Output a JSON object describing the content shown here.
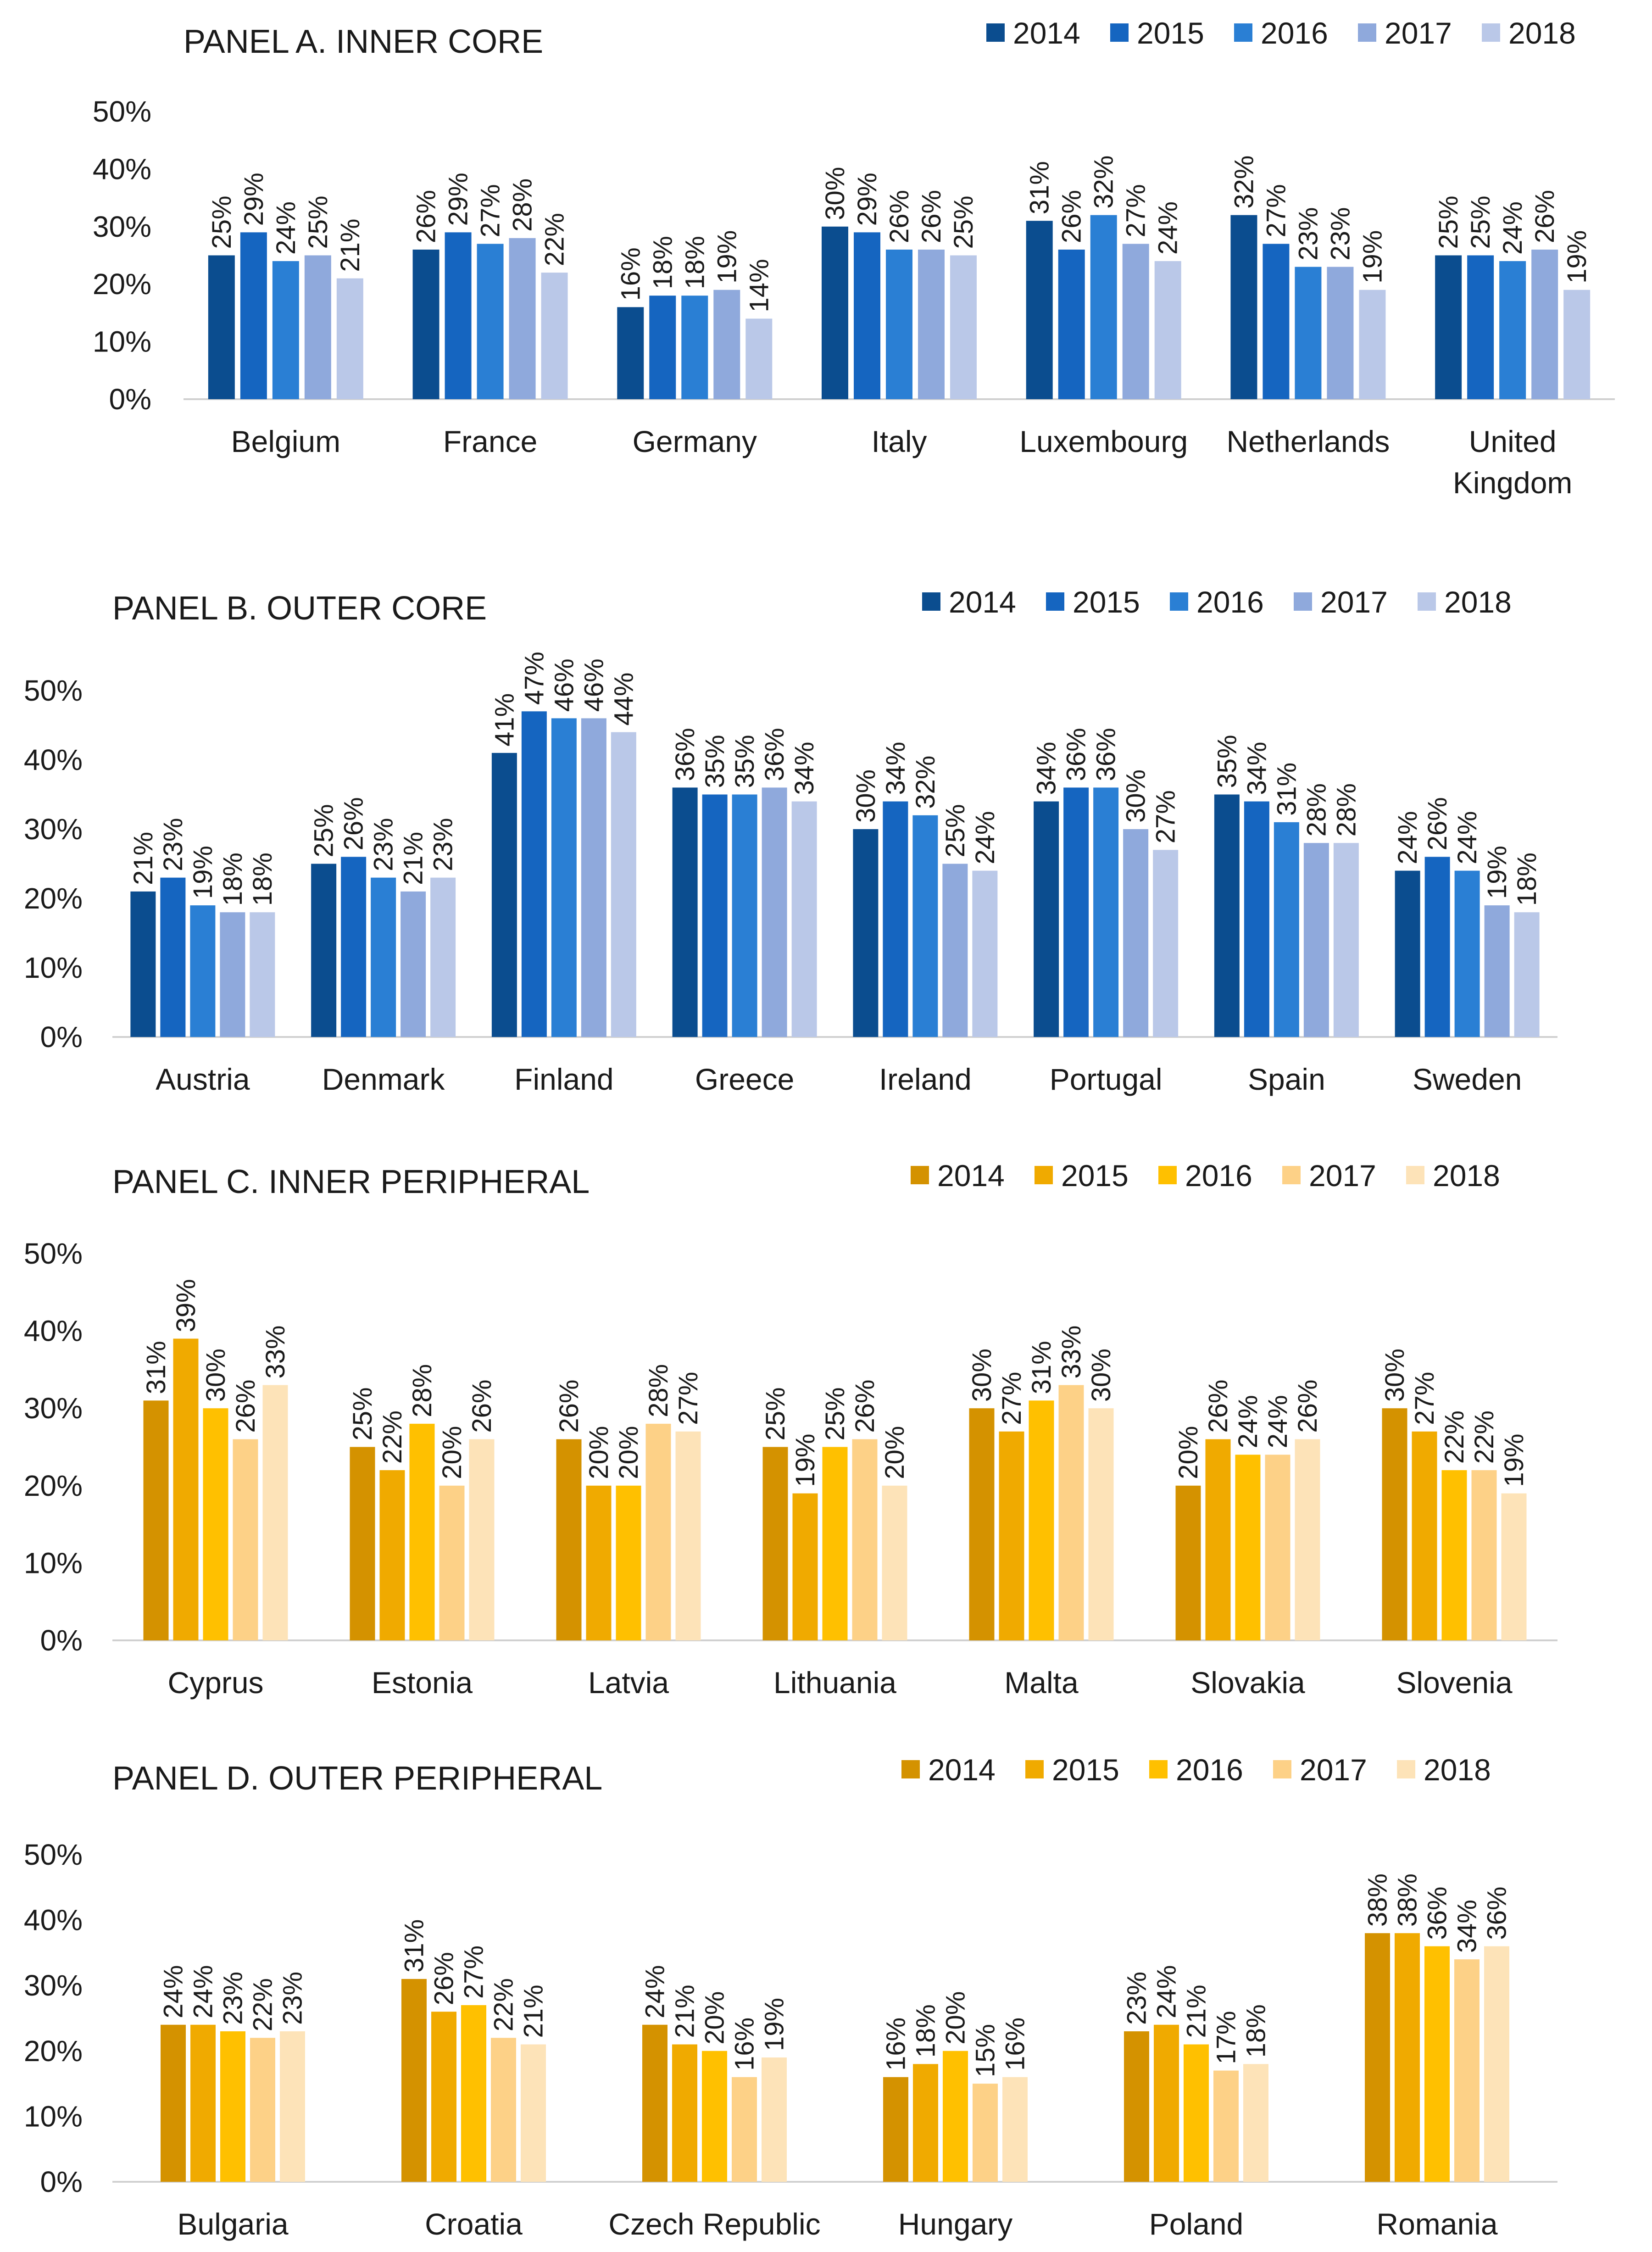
{
  "chart_data": [
    {
      "type": "bar",
      "title": "PANEL A. INNER CORE",
      "categories": [
        "Belgium",
        "France",
        "Germany",
        "Italy",
        "Luxembourg",
        "Netherlands",
        "United Kingdom"
      ],
      "category_lines": [
        [
          "Belgium"
        ],
        [
          "France"
        ],
        [
          "Germany"
        ],
        [
          "Italy"
        ],
        [
          "Luxembourg"
        ],
        [
          "Netherlands"
        ],
        [
          "United",
          "Kingdom"
        ]
      ],
      "years": [
        "2014",
        "2015",
        "2016",
        "2017",
        "2018"
      ],
      "colors": [
        "#0b4d8f",
        "#1565c0",
        "#2a7fd4",
        "#8fa9dc",
        "#bac8e8"
      ],
      "series": [
        {
          "name": "2014",
          "values": [
            25,
            26,
            16,
            30,
            31,
            32,
            25
          ]
        },
        {
          "name": "2015",
          "values": [
            29,
            29,
            18,
            29,
            26,
            27,
            25
          ]
        },
        {
          "name": "2016",
          "values": [
            24,
            27,
            18,
            26,
            32,
            23,
            24
          ]
        },
        {
          "name": "2017",
          "values": [
            25,
            28,
            19,
            26,
            27,
            23,
            26
          ]
        },
        {
          "name": "2018",
          "values": [
            21,
            22,
            14,
            25,
            24,
            19,
            19
          ]
        }
      ],
      "ylim": [
        0,
        50
      ],
      "yticks": [
        "0%",
        "10%",
        "20%",
        "30%",
        "40%",
        "50%"
      ],
      "legend_position": "top-right"
    },
    {
      "type": "bar",
      "title": "PANEL B. OUTER CORE",
      "categories": [
        "Austria",
        "Denmark",
        "Finland",
        "Greece",
        "Ireland",
        "Portugal",
        "Spain",
        "Sweden"
      ],
      "category_lines": [
        [
          "Austria"
        ],
        [
          "Denmark"
        ],
        [
          "Finland"
        ],
        [
          "Greece"
        ],
        [
          "Ireland"
        ],
        [
          "Portugal"
        ],
        [
          "Spain"
        ],
        [
          "Sweden"
        ]
      ],
      "years": [
        "2014",
        "2015",
        "2016",
        "2017",
        "2018"
      ],
      "colors": [
        "#0b4d8f",
        "#1565c0",
        "#2a7fd4",
        "#8fa9dc",
        "#bac8e8"
      ],
      "series": [
        {
          "name": "2014",
          "values": [
            21,
            25,
            41,
            36,
            30,
            34,
            35,
            24
          ]
        },
        {
          "name": "2015",
          "values": [
            23,
            26,
            47,
            35,
            34,
            36,
            34,
            26
          ]
        },
        {
          "name": "2016",
          "values": [
            19,
            23,
            46,
            35,
            32,
            36,
            31,
            24
          ]
        },
        {
          "name": "2017",
          "values": [
            18,
            21,
            46,
            36,
            25,
            30,
            28,
            19
          ]
        },
        {
          "name": "2018",
          "values": [
            18,
            23,
            44,
            34,
            24,
            27,
            28,
            18
          ]
        }
      ],
      "ylim": [
        0,
        50
      ],
      "yticks": [
        "0%",
        "10%",
        "20%",
        "30%",
        "40%",
        "50%"
      ],
      "legend_position": "top-right"
    },
    {
      "type": "bar",
      "title": "PANEL C. INNER PERIPHERAL",
      "categories": [
        "Cyprus",
        "Estonia",
        "Latvia",
        "Lithuania",
        "Malta",
        "Slovakia",
        "Slovenia"
      ],
      "category_lines": [
        [
          "Cyprus"
        ],
        [
          "Estonia"
        ],
        [
          "Latvia"
        ],
        [
          "Lithuania"
        ],
        [
          "Malta"
        ],
        [
          "Slovakia"
        ],
        [
          "Slovenia"
        ]
      ],
      "years": [
        "2014",
        "2015",
        "2016",
        "2017",
        "2018"
      ],
      "colors": [
        "#d49200",
        "#f0aa00",
        "#ffc000",
        "#fdd187",
        "#fde3b8"
      ],
      "series": [
        {
          "name": "2014",
          "values": [
            31,
            25,
            26,
            25,
            30,
            20,
            30
          ]
        },
        {
          "name": "2015",
          "values": [
            39,
            22,
            20,
            19,
            27,
            26,
            27
          ]
        },
        {
          "name": "2016",
          "values": [
            30,
            28,
            20,
            25,
            31,
            24,
            22
          ]
        },
        {
          "name": "2017",
          "values": [
            26,
            20,
            28,
            26,
            33,
            24,
            22
          ]
        },
        {
          "name": "2018",
          "values": [
            33,
            26,
            27,
            20,
            30,
            26,
            19
          ]
        }
      ],
      "ylim": [
        0,
        50
      ],
      "yticks": [
        "0%",
        "10%",
        "20%",
        "30%",
        "40%",
        "50%"
      ],
      "legend_position": "top-right"
    },
    {
      "type": "bar",
      "title": "PANEL D. OUTER PERIPHERAL",
      "categories": [
        "Bulgaria",
        "Croatia",
        "Czech Republic",
        "Hungary",
        "Poland",
        "Romania"
      ],
      "category_lines": [
        [
          "Bulgaria"
        ],
        [
          "Croatia"
        ],
        [
          "Czech Republic"
        ],
        [
          "Hungary"
        ],
        [
          "Poland"
        ],
        [
          "Romania"
        ]
      ],
      "years": [
        "2014",
        "2015",
        "2016",
        "2017",
        "2018"
      ],
      "colors": [
        "#d49200",
        "#f0aa00",
        "#ffc000",
        "#fdd187",
        "#fde3b8"
      ],
      "series": [
        {
          "name": "2014",
          "values": [
            24,
            31,
            24,
            16,
            23,
            38
          ]
        },
        {
          "name": "2015",
          "values": [
            24,
            26,
            21,
            18,
            24,
            38
          ]
        },
        {
          "name": "2016",
          "values": [
            23,
            27,
            20,
            20,
            21,
            36
          ]
        },
        {
          "name": "2017",
          "values": [
            22,
            22,
            16,
            15,
            17,
            34
          ]
        },
        {
          "name": "2018",
          "values": [
            23,
            21,
            19,
            16,
            18,
            36
          ]
        }
      ],
      "ylim": [
        0,
        50
      ],
      "yticks": [
        "0%",
        "10%",
        "20%",
        "30%",
        "40%",
        "50%"
      ],
      "legend_position": "top-right"
    }
  ]
}
